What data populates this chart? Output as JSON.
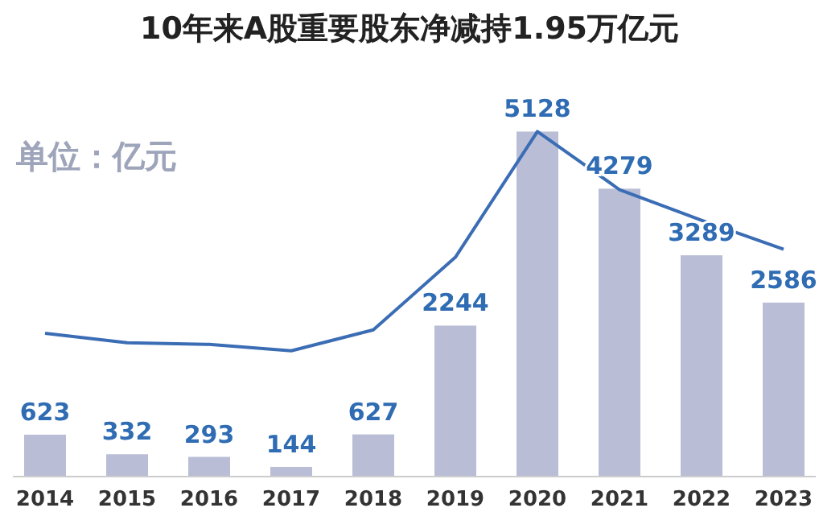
{
  "chart_data": {
    "type": "bar",
    "title": "10年来A股重要股东净减持1.95万亿元",
    "annotations": [
      "单位：亿元"
    ],
    "categories": [
      "2014",
      "2015",
      "2016",
      "2017",
      "2018",
      "2019",
      "2020",
      "2021",
      "2022",
      "2023"
    ],
    "series": [
      {
        "color": "#b9bed6",
        "values": [
          623,
          332,
          293,
          144,
          627,
          2244,
          5128,
          4279,
          3289,
          2586
        ],
        "value_labels": [
          "623",
          "332",
          "293",
          "144",
          "627",
          "2244",
          "5128",
          "4279",
          "3289",
          "2586"
        ]
      },
      {
        "type": "line",
        "color": "#3b6db5",
        "values": [
          2130,
          1990,
          1965,
          1870,
          2180,
          3260,
          5128,
          4265,
          3810,
          3380
        ]
      }
    ],
    "tick_labels": "x",
    "grid": false
  }
}
